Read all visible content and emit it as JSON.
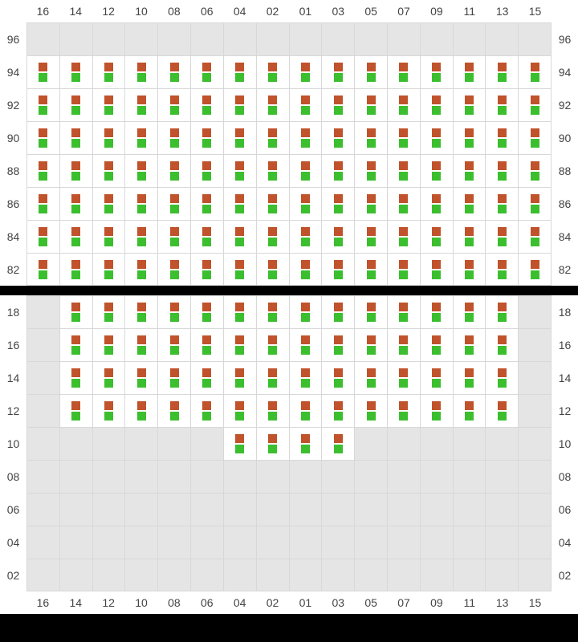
{
  "layout": {
    "cols": 16,
    "cell_colors": {
      "top": "#c0522c",
      "bottom": "#3bbf2e"
    },
    "empty_bg": "#e5e5e5",
    "filled_bg": "#ffffff",
    "grid_color": "#d8d8d8",
    "label_color": "#444444",
    "label_fontsize": 14,
    "square_size": 11
  },
  "col_labels_top": [
    "16",
    "14",
    "12",
    "10",
    "08",
    "06",
    "04",
    "02",
    "01",
    "03",
    "05",
    "07",
    "09",
    "11",
    "13",
    "15"
  ],
  "col_labels_bottom": [
    "16",
    "14",
    "12",
    "10",
    "08",
    "06",
    "04",
    "02",
    "01",
    "03",
    "05",
    "07",
    "09",
    "11",
    "13",
    "15"
  ],
  "upper": {
    "row_labels": [
      "96",
      "94",
      "92",
      "90",
      "88",
      "86",
      "84",
      "82"
    ],
    "rows": [
      [
        0,
        0,
        0,
        0,
        0,
        0,
        0,
        0,
        0,
        0,
        0,
        0,
        0,
        0,
        0,
        0
      ],
      [
        1,
        1,
        1,
        1,
        1,
        1,
        1,
        1,
        1,
        1,
        1,
        1,
        1,
        1,
        1,
        1
      ],
      [
        1,
        1,
        1,
        1,
        1,
        1,
        1,
        1,
        1,
        1,
        1,
        1,
        1,
        1,
        1,
        1
      ],
      [
        1,
        1,
        1,
        1,
        1,
        1,
        1,
        1,
        1,
        1,
        1,
        1,
        1,
        1,
        1,
        1
      ],
      [
        1,
        1,
        1,
        1,
        1,
        1,
        1,
        1,
        1,
        1,
        1,
        1,
        1,
        1,
        1,
        1
      ],
      [
        1,
        1,
        1,
        1,
        1,
        1,
        1,
        1,
        1,
        1,
        1,
        1,
        1,
        1,
        1,
        1
      ],
      [
        1,
        1,
        1,
        1,
        1,
        1,
        1,
        1,
        1,
        1,
        1,
        1,
        1,
        1,
        1,
        1
      ],
      [
        1,
        1,
        1,
        1,
        1,
        1,
        1,
        1,
        1,
        1,
        1,
        1,
        1,
        1,
        1,
        1
      ]
    ]
  },
  "lower": {
    "row_labels": [
      "18",
      "16",
      "14",
      "12",
      "10",
      "08",
      "06",
      "04",
      "02"
    ],
    "rows": [
      [
        0,
        1,
        1,
        1,
        1,
        1,
        1,
        1,
        1,
        1,
        1,
        1,
        1,
        1,
        1,
        0
      ],
      [
        0,
        1,
        1,
        1,
        1,
        1,
        1,
        1,
        1,
        1,
        1,
        1,
        1,
        1,
        1,
        0
      ],
      [
        0,
        1,
        1,
        1,
        1,
        1,
        1,
        1,
        1,
        1,
        1,
        1,
        1,
        1,
        1,
        0
      ],
      [
        0,
        1,
        1,
        1,
        1,
        1,
        1,
        1,
        1,
        1,
        1,
        1,
        1,
        1,
        1,
        0
      ],
      [
        0,
        0,
        0,
        0,
        0,
        0,
        1,
        1,
        1,
        1,
        0,
        0,
        0,
        0,
        0,
        0
      ],
      [
        0,
        0,
        0,
        0,
        0,
        0,
        0,
        0,
        0,
        0,
        0,
        0,
        0,
        0,
        0,
        0
      ],
      [
        0,
        0,
        0,
        0,
        0,
        0,
        0,
        0,
        0,
        0,
        0,
        0,
        0,
        0,
        0,
        0
      ],
      [
        0,
        0,
        0,
        0,
        0,
        0,
        0,
        0,
        0,
        0,
        0,
        0,
        0,
        0,
        0,
        0
      ],
      [
        0,
        0,
        0,
        0,
        0,
        0,
        0,
        0,
        0,
        0,
        0,
        0,
        0,
        0,
        0,
        0
      ]
    ]
  }
}
